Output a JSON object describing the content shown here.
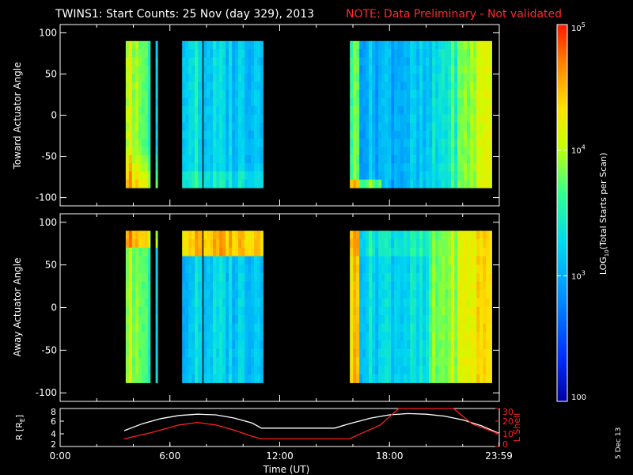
{
  "title": {
    "main": "TWINS1: Start Counts: 25 Nov (day 329), 2013",
    "note": "NOTE: Data Preliminary - Not validated"
  },
  "colors": {
    "background": "#000000",
    "axes": "#ffffff",
    "note": "#ff2a2a",
    "lshell": "#ff2020",
    "radius": "#ffffff"
  },
  "stamp": "5 Dec 13",
  "chart_data": [
    {
      "type": "heatmap",
      "panel": "toward",
      "ylabel": "Toward Actuator Angle",
      "xlim": [
        0,
        24
      ],
      "ylim": [
        -110,
        110
      ],
      "yticks": [
        100,
        50,
        0,
        -50,
        -100
      ],
      "angle_range": [
        -88,
        90
      ],
      "data_blocks": [
        {
          "start": "3:35",
          "end": "4:55"
        },
        {
          "start": "5:13",
          "end": "5:19"
        },
        {
          "start": "6:40",
          "end": "7:45"
        },
        {
          "start": "7:50",
          "end": "11:05"
        },
        {
          "start": "15:50",
          "end": "23:35"
        }
      ],
      "colorbar_label": "LOG10(Total Starts per Scan)"
    },
    {
      "type": "heatmap",
      "panel": "away",
      "ylabel": "Away Actuator Angle",
      "xlim": [
        0,
        24
      ],
      "ylim": [
        -110,
        110
      ],
      "yticks": [
        100,
        50,
        0,
        -50,
        -100
      ],
      "angle_range": [
        -88,
        90
      ],
      "data_blocks": [
        {
          "start": "3:35",
          "end": "4:55"
        },
        {
          "start": "5:13",
          "end": "5:19"
        },
        {
          "start": "6:40",
          "end": "7:45"
        },
        {
          "start": "7:50",
          "end": "11:05"
        },
        {
          "start": "15:50",
          "end": "23:35"
        }
      ]
    },
    {
      "type": "line",
      "panel": "orbit",
      "xlabel": "Time (UT)",
      "xlim": [
        0,
        24
      ],
      "xticks": [
        "0:00",
        "6:00",
        "12:00",
        "18:00",
        "23:59"
      ],
      "ylabel_left": "R [RE]",
      "ylim_left": [
        2,
        8
      ],
      "yticks_left": [
        8,
        6,
        4,
        2
      ],
      "ylabel_right": "L Shell",
      "ylim_right": [
        0,
        30
      ],
      "yticks_right": [
        30,
        20,
        10,
        0
      ],
      "series": [
        {
          "axis": "left",
          "x": [
            3.5,
            4.5,
            5.5,
            6.5,
            7.5,
            8.5,
            9.5,
            10.5,
            11.0,
            12.0,
            13.0,
            14.0,
            15.0,
            15.8,
            17.0,
            18.0,
            19.0,
            20.0,
            21.0,
            22.0,
            23.0,
            23.98
          ],
          "y": [
            4.5,
            5.6,
            6.4,
            6.9,
            7.1,
            7.0,
            6.5,
            5.7,
            4.9,
            4.9,
            4.9,
            4.9,
            4.9,
            5.6,
            6.5,
            7.0,
            7.2,
            7.1,
            6.8,
            6.2,
            5.3,
            4.1
          ]
        },
        {
          "axis": "right",
          "x": [
            3.5,
            5.0,
            6.5,
            7.5,
            8.5,
            9.5,
            10.5,
            11.0,
            15.8,
            17.5,
            18.5,
            21.5,
            22.5,
            23.98
          ],
          "y": [
            6,
            11,
            17,
            19,
            17,
            13,
            8,
            6,
            6,
            17,
            30,
            30,
            18,
            10
          ]
        }
      ]
    }
  ],
  "colorbar": {
    "scale": "log",
    "range": [
      100,
      100000
    ],
    "ticks": [
      {
        "value": 100000,
        "base": "10",
        "exp": "5"
      },
      {
        "value": 10000,
        "base": "10",
        "exp": "4"
      },
      {
        "value": 1000,
        "base": "10",
        "exp": "3"
      },
      {
        "value": 100,
        "base": "100",
        "exp": ""
      }
    ],
    "label": {
      "prefix": "LOG",
      "sub": "10",
      "suffix": "(Total Starts per Scan)"
    }
  }
}
